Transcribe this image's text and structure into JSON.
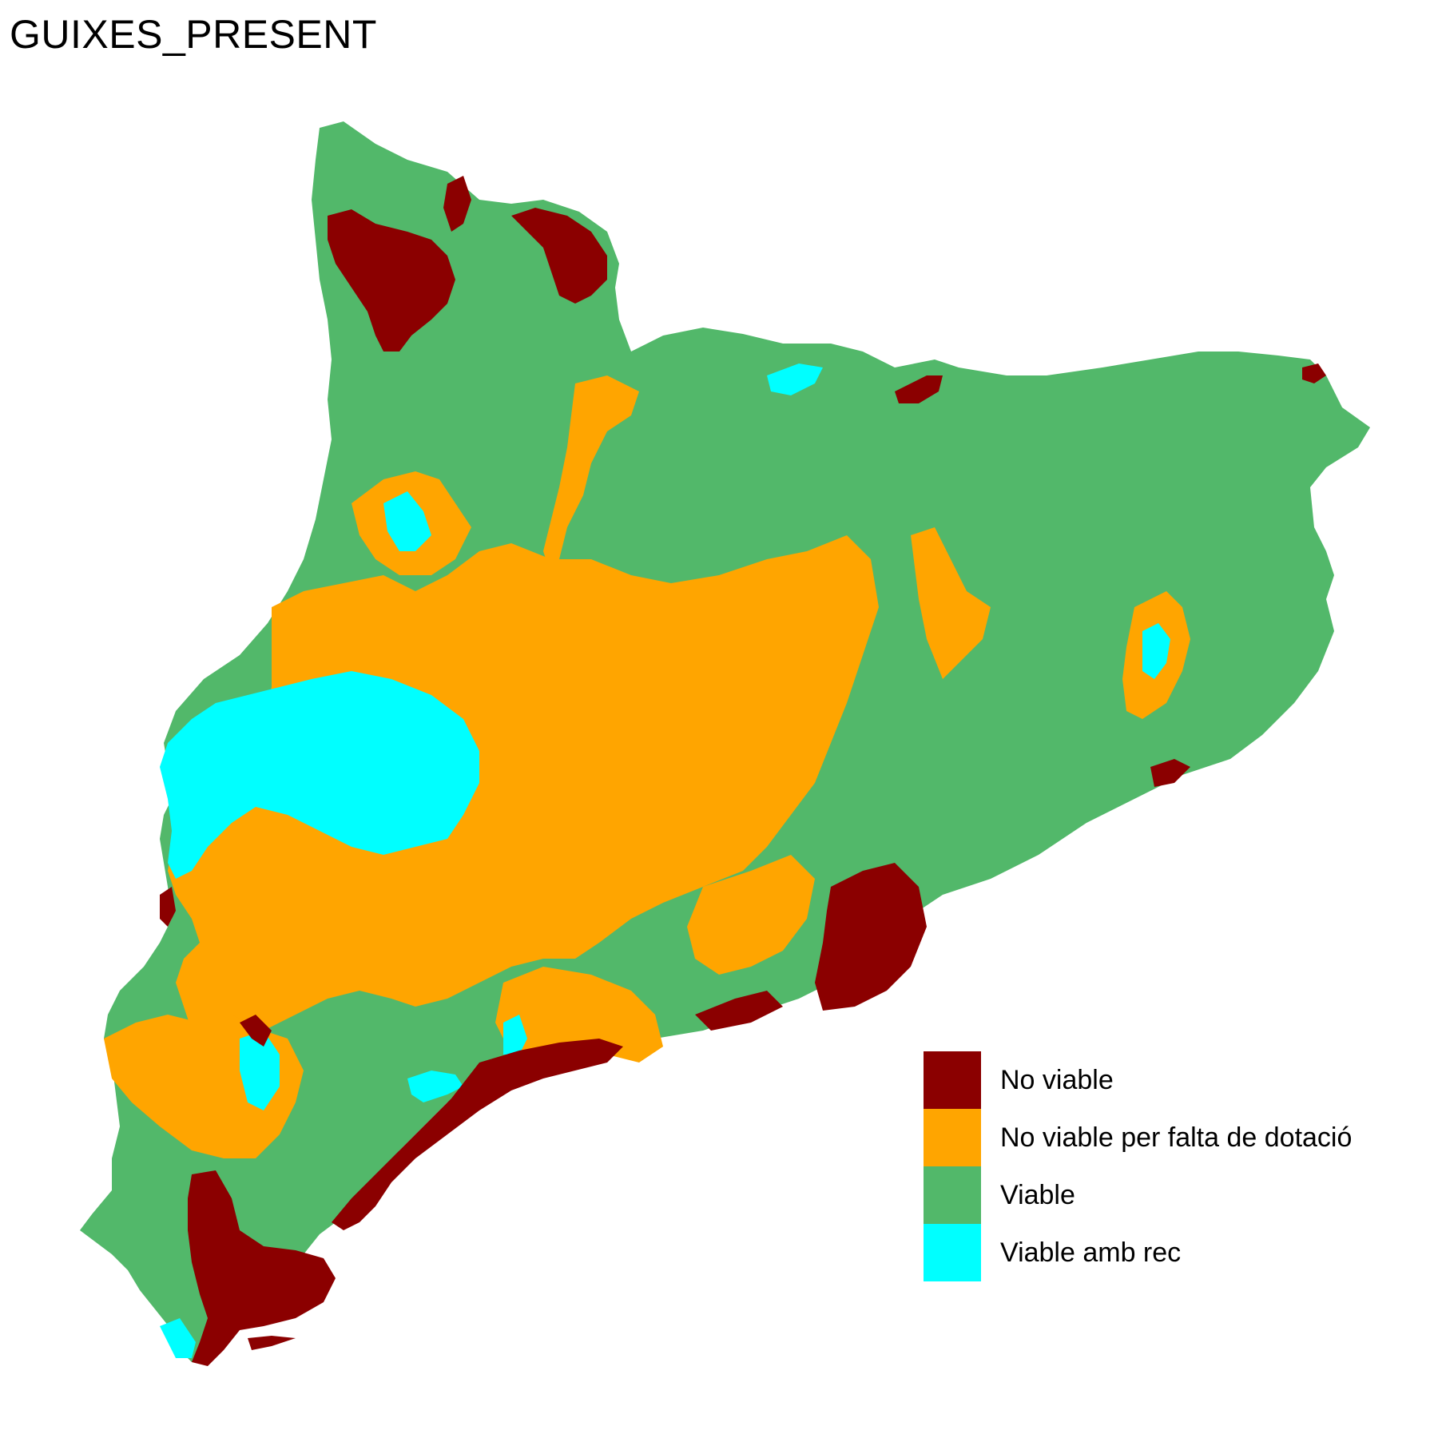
{
  "map": {
    "title": "GUIXES_PRESENT",
    "colors": {
      "no_viable": "#8B0000",
      "no_viable_dotacio": "#FFA500",
      "viable": "#52B86A",
      "viable_amb_rec": "#00FFFF",
      "background": "#FFFFFF"
    }
  },
  "legend": {
    "items": [
      {
        "label": "No viable",
        "color": "#8B0000"
      },
      {
        "label": "No viable per falta de dotació",
        "color": "#FFA500"
      },
      {
        "label": "Viable",
        "color": "#52B86A"
      },
      {
        "label": "Viable amb rec",
        "color": "#00FFFF"
      }
    ]
  }
}
